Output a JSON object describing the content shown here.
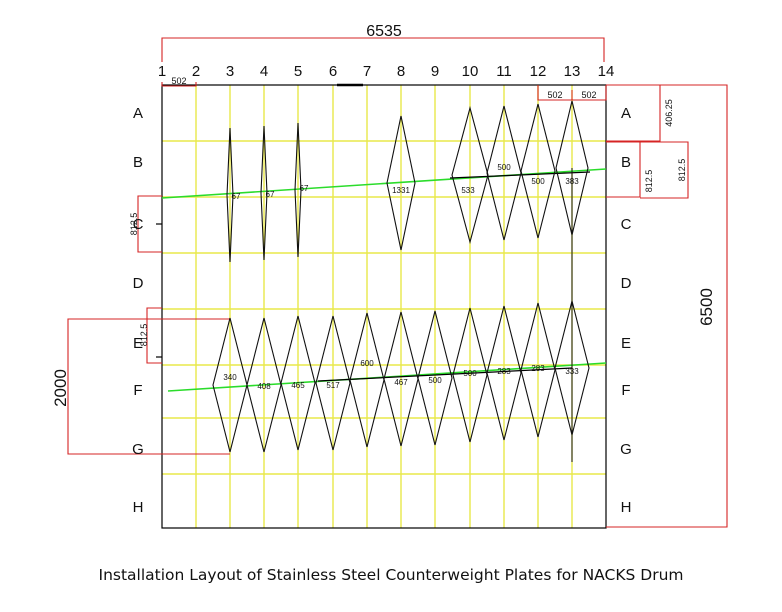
{
  "overall_width_label": "6535",
  "overall_height_label": "6500",
  "left_span_label": "2000",
  "column_labels": [
    "1",
    "2",
    "3",
    "4",
    "5",
    "6",
    "7",
    "8",
    "9",
    "10",
    "11",
    "12",
    "13",
    "14"
  ],
  "row_labels": [
    "A",
    "B",
    "C",
    "D",
    "E",
    "F",
    "G",
    "H"
  ],
  "top_segment_label": "502",
  "top_right_labels": [
    "502",
    "502"
  ],
  "vertical_dims": [
    "812.5",
    "812.5",
    "406.25",
    "812.5",
    "812.5"
  ],
  "upper_plate_labels": [
    "67",
    "67",
    "67",
    "1331",
    "533",
    "500",
    "500",
    "383"
  ],
  "lower_plate_labels": [
    "340",
    "408",
    "465",
    "517",
    "600",
    "467",
    "500",
    "500",
    "283",
    "283",
    "333"
  ],
  "caption": "Installation Layout of Stainless Steel Counterweight Plates for NACKS Drum",
  "colors": {
    "grid": "#e8e84a",
    "frame": "#000000",
    "dimension": "#d62424",
    "weld_line": "#2bdc2b",
    "plate": "#111111"
  }
}
